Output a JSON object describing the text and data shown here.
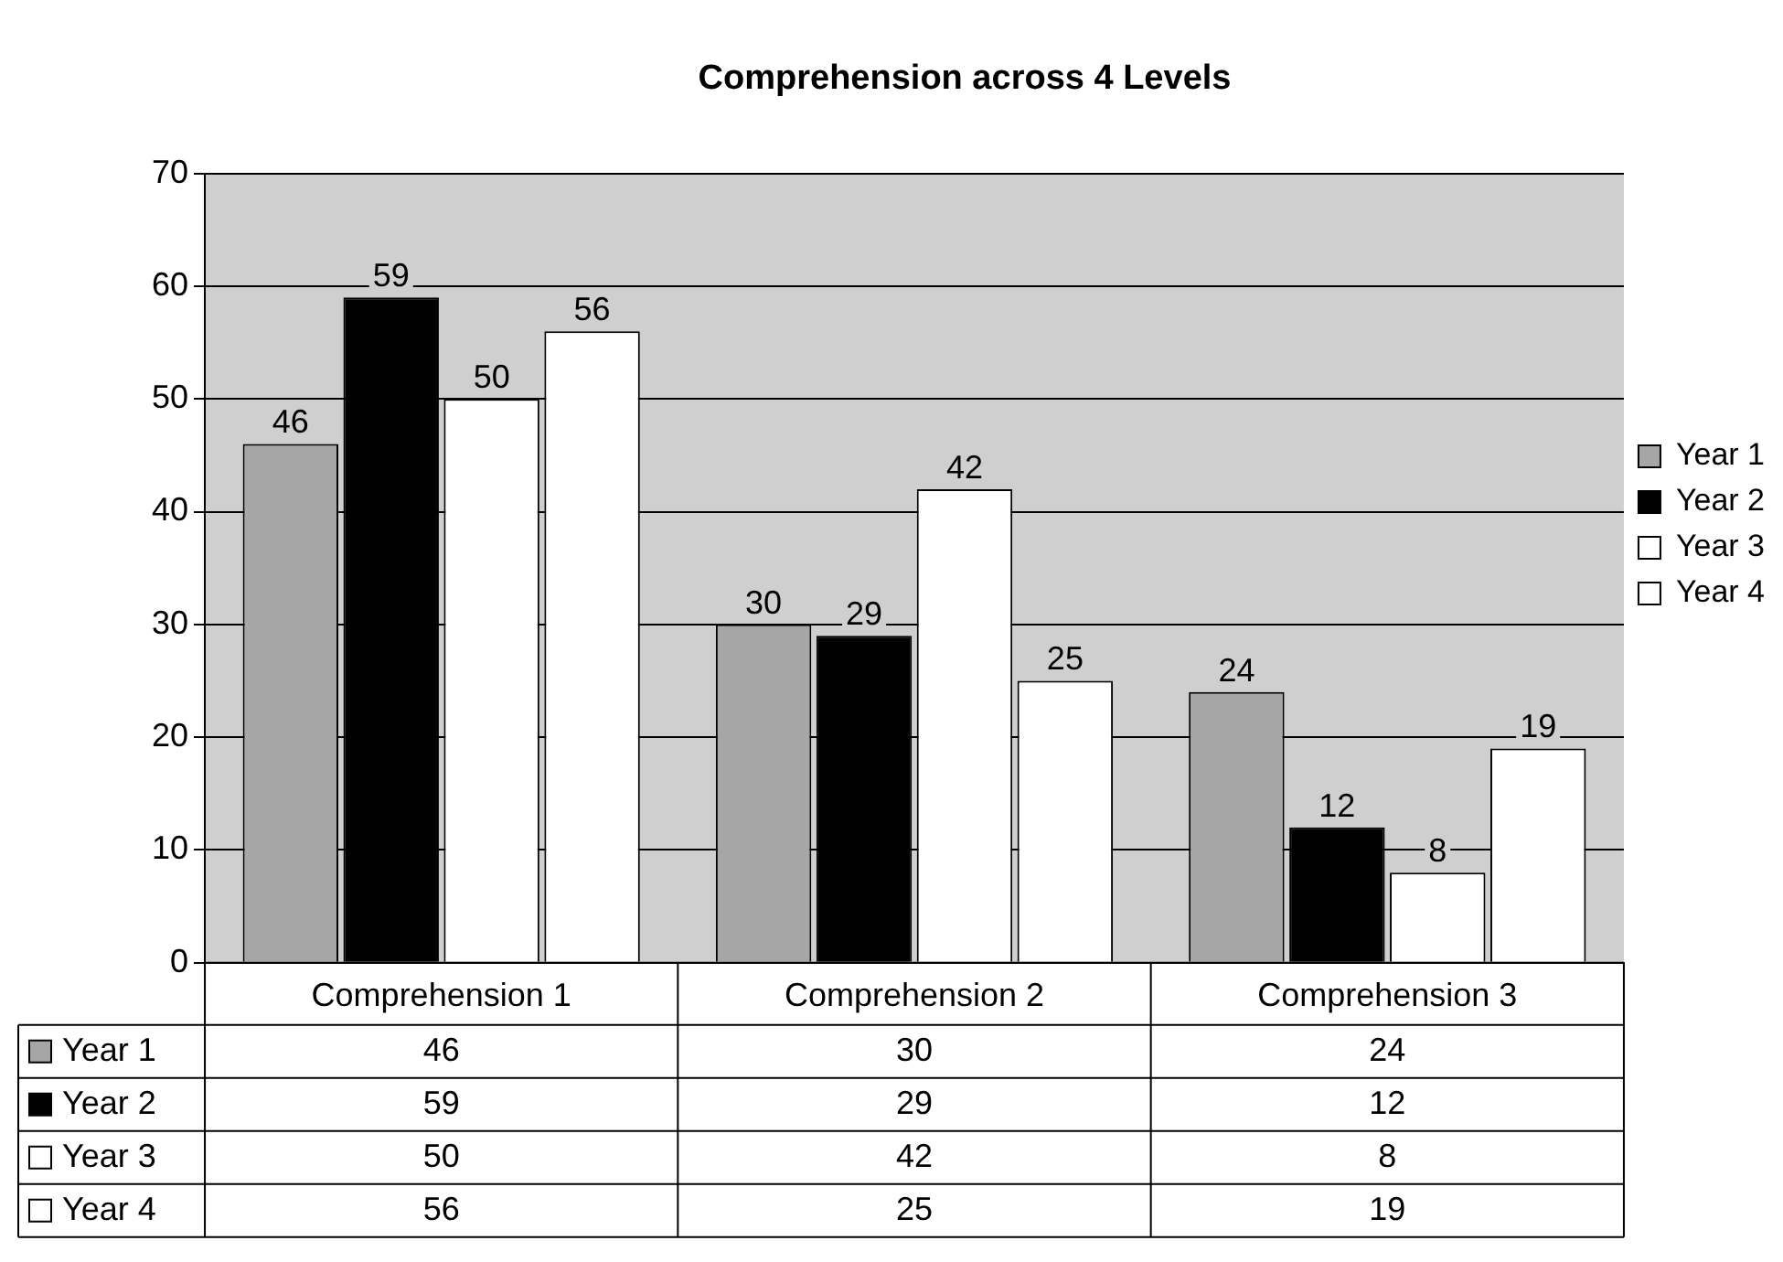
{
  "chart_data": {
    "type": "bar",
    "title": "Comprehension across 4 Levels",
    "categories": [
      "Comprehension 1",
      "Comprehension 2",
      "Comprehension 3"
    ],
    "series": [
      {
        "name": "Year 1",
        "color": "#a6a6a6",
        "values": [
          46,
          30,
          24
        ]
      },
      {
        "name": "Year 2",
        "color": "#000000",
        "values": [
          59,
          29,
          12
        ]
      },
      {
        "name": "Year 3",
        "color": "#ffffff",
        "values": [
          50,
          42,
          8
        ]
      },
      {
        "name": "Year 4",
        "color": "#ffffff",
        "values": [
          56,
          25,
          19
        ]
      }
    ],
    "annotations": [
      "46",
      "30",
      "24",
      "59",
      "29",
      "12",
      "50",
      "42",
      "8",
      "56",
      "25",
      "19"
    ],
    "ylim": [
      0,
      70
    ],
    "yticks": [
      0,
      10,
      20,
      30,
      40,
      50,
      60,
      70
    ],
    "grid": "y",
    "legend": "right",
    "data_labels": true
  }
}
